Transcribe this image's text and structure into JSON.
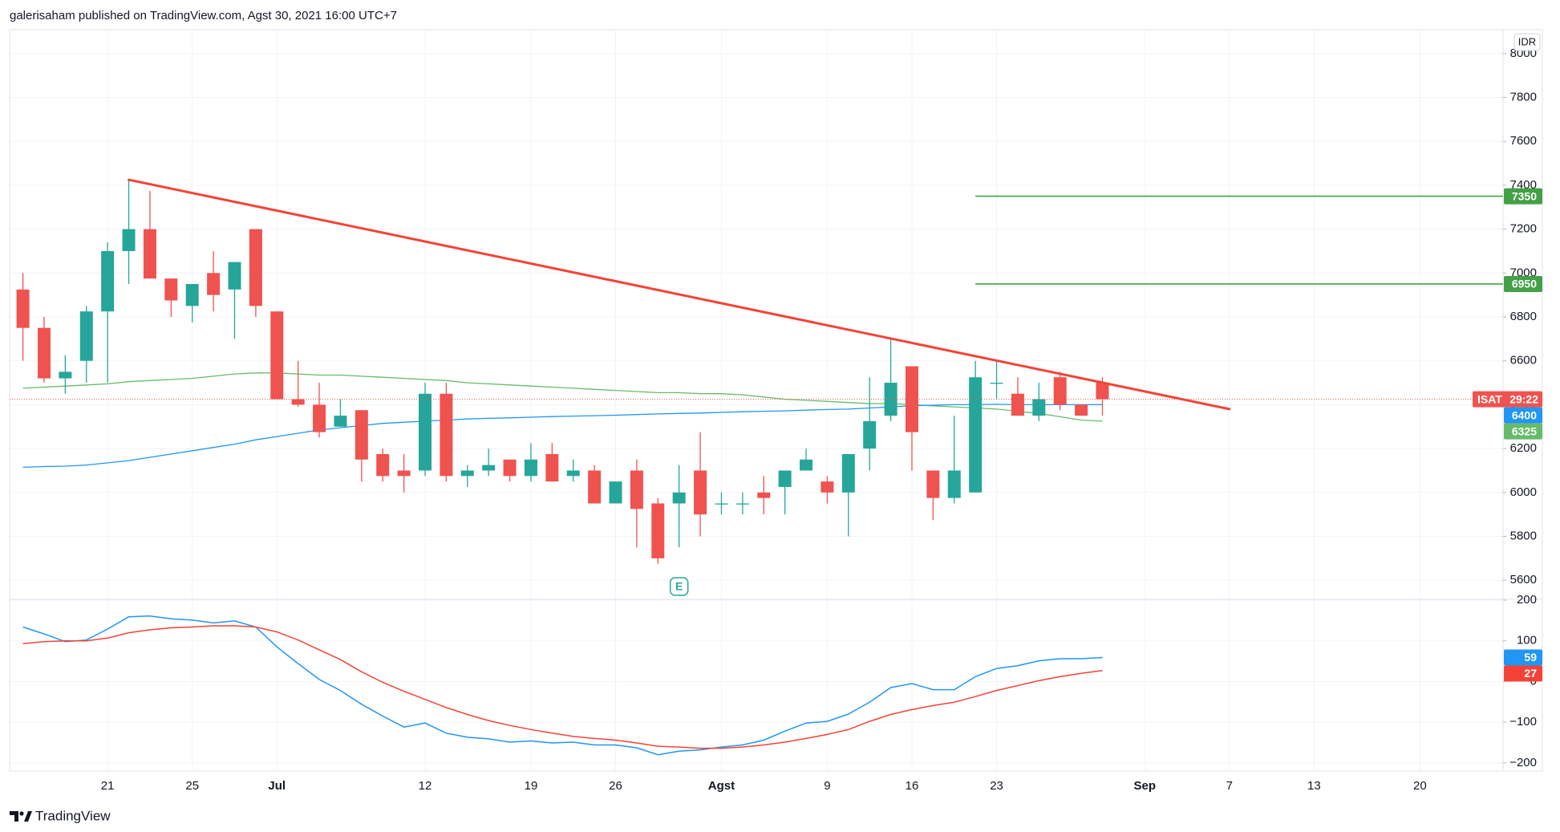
{
  "header": "galerisaham published on TradingView.com, Agst 30, 2021 16:00 UTC+7",
  "footer": "TradingView",
  "chart_data": [
    {
      "type": "candlestick",
      "currency": "IDR",
      "symbol": "ISAT",
      "countdown": "29:22",
      "categories": [
        null,
        null,
        null,
        null,
        "21",
        null,
        null,
        null,
        "25",
        null,
        null,
        null,
        "Jul",
        null,
        null,
        null,
        null,
        null,
        null,
        "12",
        null,
        null,
        null,
        null,
        "19",
        null,
        null,
        null,
        "26",
        null,
        null,
        null,
        null,
        "Agst",
        null,
        null,
        null,
        null,
        "9",
        null,
        null,
        null,
        "16",
        null,
        null,
        null,
        "23",
        null,
        null,
        null,
        null,
        null,
        null,
        "Sep",
        null,
        null,
        null,
        "7",
        null,
        null,
        null,
        "13",
        null,
        null,
        null,
        null,
        "20",
        null,
        null,
        null
      ],
      "open": [
        6925,
        6750,
        6520,
        6600,
        6825,
        7100,
        7200,
        6975,
        6850,
        7000,
        6925,
        7200,
        6825,
        6425,
        6400,
        6300,
        6375,
        6175,
        6100,
        6100,
        6450,
        6075,
        6100,
        6150,
        6075,
        6175,
        6075,
        6100,
        5950,
        6100,
        5950,
        5950,
        6100,
        5950,
        5950,
        6000,
        6025,
        6100,
        6050,
        6000,
        6200,
        6350,
        6575,
        6100,
        5975,
        6000,
        6500,
        6450,
        6350,
        6525,
        6400,
        6500,
        null,
        null,
        null,
        null,
        null,
        null,
        null,
        null,
        null,
        null,
        null,
        null,
        null,
        null,
        null,
        null,
        null,
        null
      ],
      "high": [
        7000,
        6800,
        6625,
        6850,
        7140,
        7425,
        7375,
        6975,
        6950,
        7100,
        7050,
        7200,
        6825,
        6600,
        6500,
        6425,
        6375,
        6200,
        6175,
        6500,
        6500,
        6125,
        6200,
        6150,
        6225,
        6225,
        6150,
        6125,
        6050,
        6150,
        5975,
        6125,
        6275,
        6000,
        6000,
        6075,
        6100,
        6200,
        6075,
        6175,
        6525,
        6700,
        6575,
        6100,
        6350,
        6600,
        6600,
        6525,
        6500,
        6550,
        6400,
        6525,
        null,
        null,
        null,
        null,
        null,
        null,
        null,
        null,
        null,
        null,
        null,
        null,
        null,
        null,
        null,
        null,
        null,
        null
      ],
      "low": [
        6600,
        6500,
        6450,
        6500,
        6500,
        6950,
        6975,
        6800,
        6775,
        6825,
        6700,
        6800,
        6425,
        6390,
        6250,
        6300,
        6050,
        6050,
        6000,
        6075,
        6050,
        6025,
        6075,
        6050,
        6050,
        6050,
        6050,
        5950,
        5950,
        5750,
        5675,
        5750,
        5800,
        5900,
        5900,
        5900,
        5900,
        6100,
        5950,
        5800,
        6100,
        6325,
        6100,
        5875,
        5950,
        6000,
        6425,
        6350,
        6325,
        6375,
        6350,
        6350,
        null,
        null,
        null,
        null,
        null,
        null,
        null,
        null,
        null,
        null,
        null,
        null,
        null,
        null,
        null,
        null,
        null,
        null
      ],
      "close": [
        6750,
        6520,
        6550,
        6825,
        7100,
        7200,
        6975,
        6875,
        6950,
        6900,
        7050,
        6850,
        6425,
        6400,
        6275,
        6350,
        6150,
        6075,
        6075,
        6450,
        6075,
        6100,
        6125,
        6075,
        6150,
        6050,
        6100,
        5950,
        6050,
        5925,
        5700,
        6000,
        5900,
        5950,
        5950,
        5975,
        6100,
        6150,
        6000,
        6175,
        6325,
        6500,
        6275,
        5975,
        6100,
        6525,
        6500,
        6350,
        6425,
        6400,
        6350,
        6425,
        null,
        null,
        null,
        null,
        null,
        null,
        null,
        null,
        null,
        null,
        null,
        null,
        null,
        null,
        null,
        null,
        null,
        null
      ],
      "up_color": "#26a69a",
      "down_color": "#ef5350",
      "overlays": [
        {
          "color": "#66bb6a",
          "values": [
            6475,
            6480,
            6485,
            6490,
            6495,
            6505,
            6510,
            6515,
            6520,
            6530,
            6540,
            6545,
            6545,
            6540,
            6535,
            6535,
            6530,
            6525,
            6520,
            6515,
            6510,
            6500,
            6495,
            6490,
            6485,
            6480,
            6475,
            6470,
            6465,
            6460,
            6455,
            6455,
            6450,
            6450,
            6445,
            6435,
            6425,
            6420,
            6415,
            6410,
            6405,
            6405,
            6400,
            6395,
            6390,
            6385,
            6380,
            6370,
            6360,
            6345,
            6330,
            6325,
            null,
            null,
            null,
            null,
            null,
            null,
            null,
            null,
            null,
            null,
            null,
            null,
            null,
            null,
            null,
            null,
            null,
            null
          ]
        },
        {
          "color": "#2196f3",
          "values": [
            6115,
            6118,
            6120,
            6125,
            6135,
            6145,
            6160,
            6175,
            6190,
            6205,
            6220,
            6240,
            6255,
            6270,
            6285,
            6295,
            6305,
            6315,
            6320,
            6325,
            6330,
            6335,
            6338,
            6340,
            6343,
            6346,
            6348,
            6350,
            6352,
            6355,
            6358,
            6360,
            6362,
            6365,
            6368,
            6370,
            6372,
            6375,
            6378,
            6380,
            6385,
            6390,
            6395,
            6398,
            6400,
            6400,
            6402,
            6400,
            6400,
            6400,
            6400,
            6400,
            null,
            null,
            null,
            null,
            null,
            null,
            null,
            null,
            null,
            null,
            null,
            null,
            null,
            null,
            null,
            null,
            null,
            null
          ]
        }
      ],
      "levels": [
        {
          "value": 7350,
          "color": "#43a047",
          "x_start": 45
        },
        {
          "value": 6950,
          "color": "#43a047",
          "x_start": 45
        }
      ],
      "trendline": {
        "color": "#f44336",
        "x": [
          5,
          57
        ],
        "values": [
          7425,
          6380
        ]
      },
      "event": {
        "label": "E",
        "x": 31
      },
      "ylim": [
        5513,
        8109
      ],
      "yticks": [
        5600,
        5800,
        6000,
        6200,
        6400,
        6600,
        6800,
        7000,
        7200,
        7400,
        7600,
        7800,
        8000
      ],
      "grid": true
    },
    {
      "type": "line",
      "series": [
        {
          "color": "#2196f3",
          "values": [
            134,
            117,
            98,
            102,
            129,
            159,
            161,
            154,
            151,
            144,
            149,
            134,
            85,
            44,
            5,
            -22,
            -56,
            -85,
            -112,
            -102,
            -127,
            -137,
            -141,
            -149,
            -146,
            -151,
            -149,
            -156,
            -156,
            -163,
            -180,
            -171,
            -168,
            -161,
            -156,
            -144,
            -122,
            -102,
            -98,
            -80,
            -51,
            -15,
            -5,
            -20,
            -20,
            12,
            32,
            39,
            51,
            56,
            56,
            59,
            null,
            null,
            null,
            null,
            null,
            null,
            null,
            null,
            null,
            null,
            null,
            null,
            null,
            null,
            null,
            null,
            null,
            null
          ]
        },
        {
          "color": "#f44336",
          "values": [
            93,
            98,
            100,
            100,
            107,
            120,
            127,
            132,
            134,
            137,
            137,
            134,
            122,
            102,
            78,
            54,
            24,
            -2,
            -24,
            -44,
            -64,
            -81,
            -96,
            -108,
            -118,
            -127,
            -135,
            -140,
            -144,
            -151,
            -159,
            -161,
            -164,
            -164,
            -161,
            -156,
            -149,
            -140,
            -130,
            -118,
            -98,
            -81,
            -69,
            -59,
            -51,
            -37,
            -22,
            -10,
            2,
            12,
            20,
            27,
            null,
            null,
            null,
            null,
            null,
            null,
            null,
            null,
            null,
            null,
            null,
            null,
            null,
            null,
            null,
            null,
            null,
            null
          ]
        }
      ],
      "ylim": [
        -220,
        202
      ],
      "yticks": [
        {
          "value": -200,
          "label": "−200"
        },
        {
          "value": -100,
          "label": "−100"
        },
        0,
        100,
        200
      ],
      "grid": true
    }
  ]
}
